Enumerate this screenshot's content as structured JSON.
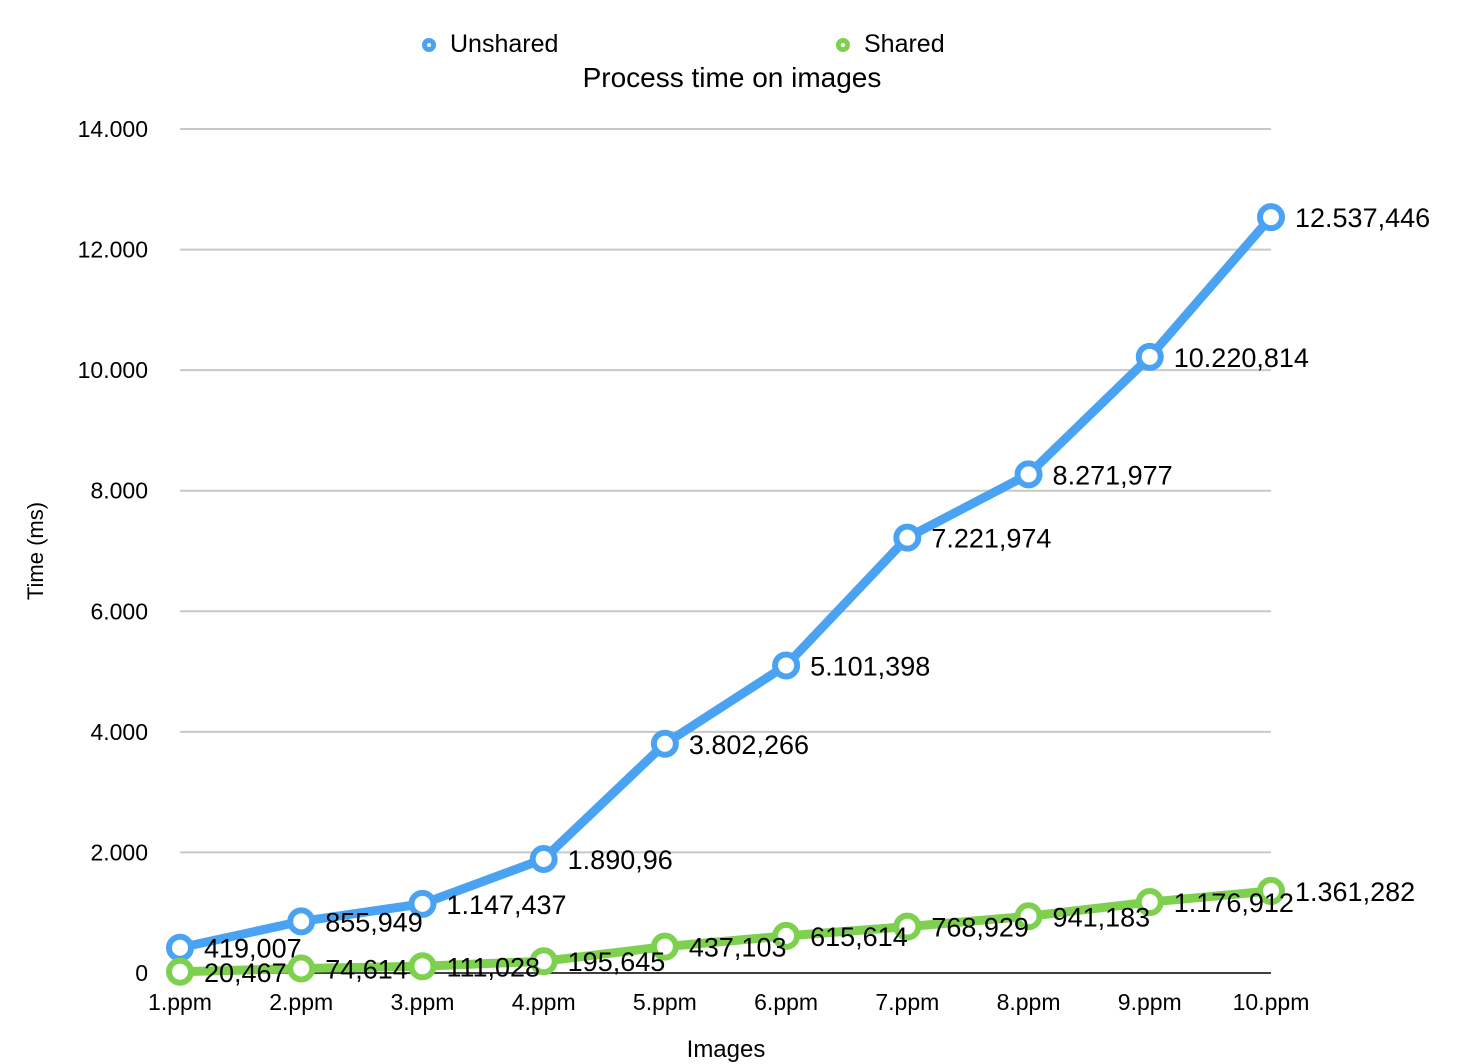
{
  "chart_data": {
    "type": "line",
    "title": "Process time on images",
    "xlabel": "Images",
    "ylabel": "Time (ms)",
    "categories": [
      "1.ppm",
      "2.ppm",
      "3.ppm",
      "4.ppm",
      "5.ppm",
      "6.ppm",
      "7.ppm",
      "8.ppm",
      "9.ppm",
      "10.ppm"
    ],
    "ylim": [
      0,
      14000
    ],
    "yticks": [
      0,
      2000,
      4000,
      6000,
      8000,
      10000,
      12000,
      14000
    ],
    "ytick_labels": [
      "0",
      "2.000",
      "4.000",
      "6.000",
      "8.000",
      "10.000",
      "12.000",
      "14.000"
    ],
    "grid": true,
    "legend_position": "top",
    "series": [
      {
        "name": "Unshared",
        "color": "#4aa3f2",
        "values": [
          419.007,
          855.949,
          1147.437,
          1890.96,
          3802.266,
          5101.398,
          7221.974,
          8271.977,
          10220.814,
          12537.446
        ],
        "labels": [
          "419,007",
          "855,949",
          "1.147,437",
          "1.890,96",
          "3.802,266",
          "5.101,398",
          "7.221,974",
          "8.271,977",
          "10.220,814",
          "12.537,446"
        ]
      },
      {
        "name": "Shared",
        "color": "#7ed14f",
        "values": [
          20.467,
          74.614,
          111.028,
          195.645,
          437.103,
          615.614,
          768.929,
          941.183,
          1176.912,
          1361.282
        ],
        "labels": [
          "20,467",
          "74,614",
          "111,028",
          "195,645",
          "437,103",
          "615,614",
          "768,929",
          "941,183",
          "1.176,912",
          "1.361,282"
        ]
      }
    ]
  }
}
